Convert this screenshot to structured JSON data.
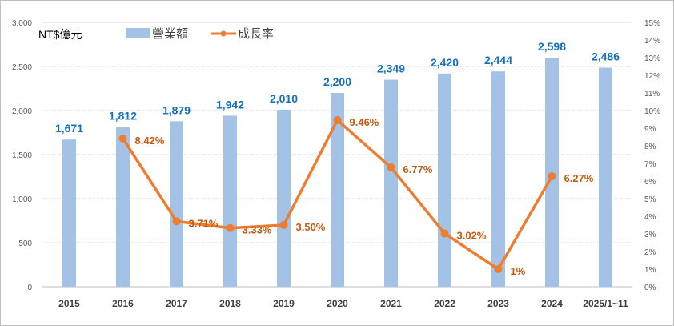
{
  "chart_data": {
    "type": "bar+line",
    "unit_label": "NT$億元",
    "categories": [
      "2015",
      "2016",
      "2017",
      "2018",
      "2019",
      "2020",
      "2021",
      "2022",
      "2023",
      "2024",
      "2025/1~11"
    ],
    "series": [
      {
        "name": "營業額",
        "type": "bar",
        "axis": "left",
        "color": "#a4c2e6",
        "values": [
          1671,
          1812,
          1879,
          1942,
          2010,
          2200,
          2349,
          2420,
          2444,
          2598,
          2486
        ],
        "labels": [
          "1,671",
          "1,812",
          "1,879",
          "1,942",
          "2,010",
          "2,200",
          "2,349",
          "2,420",
          "2,444",
          "2,598",
          "2,486"
        ]
      },
      {
        "name": "成長率",
        "type": "line",
        "axis": "right",
        "color": "#ed7d31",
        "values": [
          null,
          8.42,
          3.71,
          3.33,
          3.5,
          9.46,
          6.77,
          3.02,
          1,
          6.27,
          null
        ],
        "labels": [
          "",
          "8.42%",
          "3.71%",
          "3.33%",
          "3.50%",
          "9.46%",
          "6.77%",
          "3.02%",
          "1%",
          "6.27%",
          ""
        ]
      }
    ],
    "left_axis": {
      "range": [
        0,
        3000
      ],
      "ticks": [
        "0",
        "500",
        "1,000",
        "1,500",
        "2,000",
        "2,500",
        "3,000"
      ],
      "tick_values": [
        0,
        500,
        1000,
        1500,
        2000,
        2500,
        3000
      ]
    },
    "right_axis": {
      "range": [
        0,
        15
      ],
      "ticks": [
        "0%",
        "1%",
        "2%",
        "3%",
        "4%",
        "5%",
        "6%",
        "7%",
        "8%",
        "9%",
        "10%",
        "11%",
        "12%",
        "13%",
        "14%",
        "15%"
      ]
    },
    "grid": true,
    "legend": {
      "position": "top",
      "items": [
        "營業額",
        "成長率"
      ]
    }
  }
}
